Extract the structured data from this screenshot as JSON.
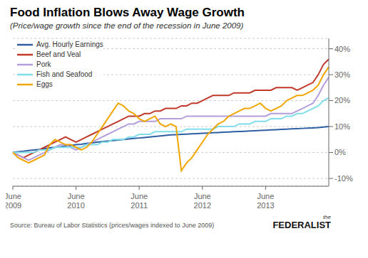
{
  "chart_data": {
    "type": "line",
    "title": "Food Inflation Blows Away Wage Growth",
    "subtitle": "(Price/wage growth since the end of the recession in June 2009)",
    "annotations": [
      "Source: Bureau of Labor Statistics  (prices/wages indexed to June 2009)",
      "the",
      "FEDERALIST"
    ],
    "categories": [
      "June\n2009",
      null,
      null,
      null,
      null,
      null,
      null,
      null,
      null,
      null,
      null,
      null,
      "June\n2010",
      null,
      null,
      null,
      null,
      null,
      null,
      null,
      null,
      null,
      null,
      null,
      "June\n2011",
      null,
      null,
      null,
      null,
      null,
      null,
      null,
      null,
      null,
      null,
      null,
      "June\n2012",
      null,
      null,
      null,
      null,
      null,
      null,
      null,
      null,
      null,
      null,
      null,
      "June\n2013",
      null,
      null,
      null,
      null,
      null,
      null,
      null,
      null,
      null,
      null,
      null,
      null
    ],
    "series": [
      {
        "name": "Avg. Hourly Earnings",
        "color": "#2e5fa3",
        "values": [
          0,
          0.3,
          0.5,
          0.8,
          1.0,
          1.2,
          1.5,
          1.8,
          2.0,
          2.2,
          2.5,
          2.7,
          3.0,
          3.2,
          3.5,
          3.7,
          4.0,
          4.2,
          4.4,
          4.6,
          4.8,
          5.0,
          5.2,
          5.4,
          5.6,
          5.8,
          6.0,
          6.2,
          6.4,
          6.6,
          6.8,
          6.9,
          7.0,
          7.1,
          7.2,
          7.3,
          7.4,
          7.5,
          7.6,
          7.7,
          7.8,
          7.9,
          8.0,
          8.1,
          8.2,
          8.3,
          8.4,
          8.5,
          8.6,
          8.7,
          8.8,
          8.9,
          9.0,
          9.1,
          9.2,
          9.3,
          9.4,
          9.5,
          9.6,
          9.8,
          10.0
        ]
      },
      {
        "name": "Beef and Veal",
        "color": "#c0392b",
        "values": [
          0,
          -1,
          -2,
          -1,
          0,
          1,
          2,
          3,
          4,
          5,
          6,
          5,
          4,
          5,
          6,
          7,
          8,
          9,
          10,
          11,
          12,
          13,
          14,
          14,
          14,
          15,
          15,
          16,
          16,
          17,
          17,
          17,
          18,
          18,
          19,
          19,
          20,
          21,
          22,
          22,
          22,
          22,
          23,
          23,
          23,
          23,
          24,
          24,
          24,
          24,
          25,
          25,
          25,
          25,
          24,
          25,
          26,
          27,
          30,
          34,
          36
        ]
      },
      {
        "name": "Pork",
        "color": "#b39ddb",
        "values": [
          0,
          -1,
          -2,
          -3,
          -2,
          -1,
          0,
          1,
          2,
          3,
          3,
          2,
          1,
          2,
          3,
          4,
          5,
          6,
          7,
          8,
          9,
          10,
          11,
          11,
          12,
          12,
          12,
          12,
          13,
          13,
          13,
          13,
          13,
          14,
          14,
          14,
          14,
          14,
          14,
          14,
          14,
          14,
          14,
          14,
          14,
          14,
          14,
          14,
          14,
          15,
          15,
          15,
          15,
          15,
          16,
          17,
          18,
          19,
          22,
          26,
          29
        ]
      },
      {
        "name": "Fish and Seafood",
        "color": "#80deea",
        "values": [
          0,
          0,
          0,
          0,
          0,
          1,
          1,
          1,
          2,
          2,
          2,
          2,
          2,
          2,
          3,
          3,
          3,
          4,
          4,
          5,
          5,
          5,
          6,
          6,
          7,
          7,
          7,
          8,
          8,
          8,
          8,
          8,
          8,
          9,
          9,
          9,
          9,
          9,
          9,
          10,
          10,
          10,
          10,
          11,
          11,
          11,
          12,
          12,
          12,
          13,
          13,
          13,
          14,
          14,
          15,
          15,
          16,
          17,
          18,
          20,
          21
        ]
      },
      {
        "name": "Eggs",
        "color": "#f0a500",
        "values": [
          0,
          -2,
          -3,
          -4,
          -3,
          -2,
          -1,
          3,
          5,
          4,
          3,
          3,
          2,
          1,
          2,
          4,
          7,
          10,
          13,
          16,
          19,
          18,
          16,
          15,
          13,
          12,
          13,
          14,
          11,
          10,
          11,
          10,
          -7,
          -4,
          -2,
          1,
          4,
          7,
          9,
          11,
          12,
          14,
          15,
          16,
          17,
          17,
          18,
          19,
          17,
          16,
          17,
          18,
          20,
          21,
          22,
          22,
          23,
          24,
          26,
          30,
          33
        ]
      }
    ],
    "ylim": [
      -13,
      44
    ],
    "yticks": [
      {
        "value": -10,
        "label": "-10%"
      },
      {
        "value": 0,
        "label": "0%"
      },
      {
        "value": 10,
        "label": "10%"
      },
      {
        "value": 20,
        "label": "20%"
      },
      {
        "value": 30,
        "label": "30%"
      },
      {
        "value": 40,
        "label": "40%"
      }
    ],
    "grid": true,
    "legend": "upper left"
  }
}
